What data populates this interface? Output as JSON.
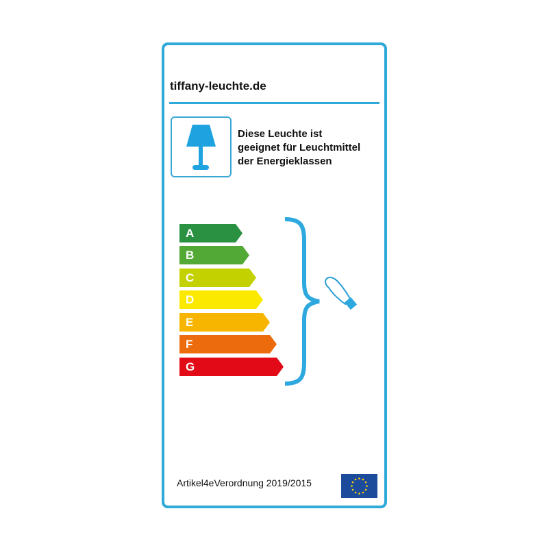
{
  "header": {
    "site": "tiffany-leuchte.de"
  },
  "lamp": {
    "icon": "table-lamp-icon",
    "lines": [
      "Diese Leuchte ist",
      "geeignet für Leuchtmittel",
      "der Energieklassen"
    ]
  },
  "classes": [
    {
      "label": "A",
      "color": "#2a9142"
    },
    {
      "label": "B",
      "color": "#53a935"
    },
    {
      "label": "C",
      "color": "#c3d100"
    },
    {
      "label": "D",
      "color": "#fbe900"
    },
    {
      "label": "E",
      "color": "#f8b500"
    },
    {
      "label": "F",
      "color": "#ec6b0c"
    },
    {
      "label": "G",
      "color": "#e20a16"
    }
  ],
  "accent": "#2ea9d8",
  "footer": {
    "regulation": "Artikel4eVerordnung 2019/2015",
    "flag": "eu-flag-icon"
  }
}
